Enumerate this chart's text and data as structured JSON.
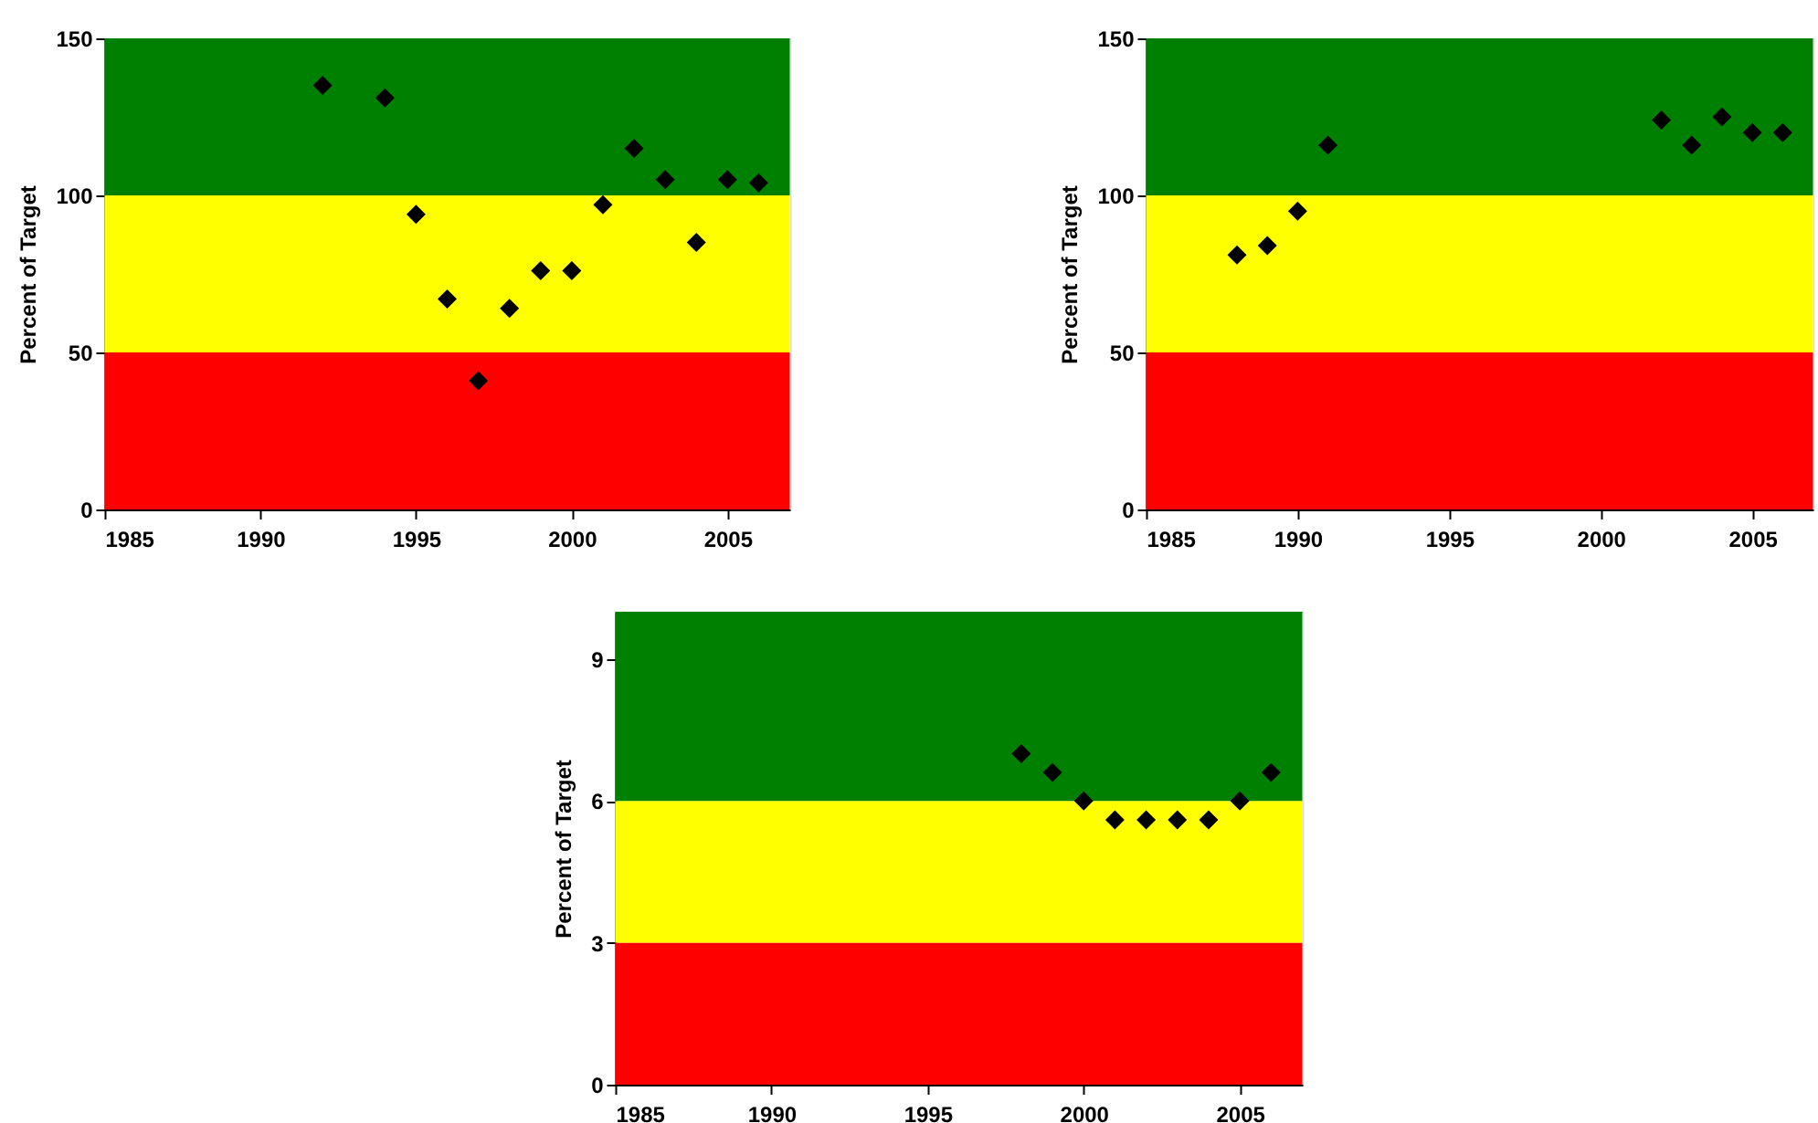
{
  "chart_data": [
    {
      "type": "scatter",
      "ylabel": "Percent of Target",
      "xlim": [
        1985,
        2007
      ],
      "xticks": [
        1985,
        1990,
        1995,
        2000,
        2005
      ],
      "ylim": [
        0,
        150
      ],
      "yticks": [
        0,
        50,
        100,
        150
      ],
      "marker": "diamond",
      "grid": false,
      "series": [
        {
          "color": "#000000",
          "x": [
            1992,
            1994,
            1995,
            1996,
            1997,
            1998,
            1999,
            2000,
            2001,
            2002,
            2003,
            2004,
            2005,
            2006
          ],
          "values": [
            135,
            131,
            94,
            67,
            41,
            64,
            76,
            76,
            97,
            115,
            105,
            85,
            105,
            104
          ]
        }
      ],
      "bands": [
        {
          "axis": "y",
          "from": 0,
          "to": 50,
          "color": "#ff0000"
        },
        {
          "axis": "y",
          "from": 50,
          "to": 100,
          "color": "#ffff00"
        },
        {
          "axis": "y",
          "from": 100,
          "to": 150,
          "color": "#008000"
        }
      ]
    },
    {
      "type": "scatter",
      "ylabel": "Percent of Target",
      "xlim": [
        1985,
        2007
      ],
      "xticks": [
        1985,
        1990,
        1995,
        2000,
        2005
      ],
      "ylim": [
        0,
        150
      ],
      "yticks": [
        0,
        50,
        100,
        150
      ],
      "marker": "diamond",
      "grid": false,
      "series": [
        {
          "color": "#000000",
          "x": [
            1988,
            1989,
            1990,
            1991,
            2002,
            2003,
            2004,
            2005,
            2006
          ],
          "values": [
            81,
            84,
            95,
            116,
            124,
            116,
            125,
            120,
            120
          ]
        }
      ],
      "bands": [
        {
          "axis": "y",
          "from": 0,
          "to": 50,
          "color": "#ff0000"
        },
        {
          "axis": "y",
          "from": 50,
          "to": 100,
          "color": "#ffff00"
        },
        {
          "axis": "y",
          "from": 100,
          "to": 150,
          "color": "#008000"
        }
      ]
    },
    {
      "type": "scatter",
      "ylabel": "Percent of Target",
      "xlim": [
        1985,
        2007
      ],
      "xticks": [
        1985,
        1990,
        1995,
        2000,
        2005
      ],
      "ylim": [
        0,
        10
      ],
      "yticks": [
        0,
        3,
        6,
        9
      ],
      "marker": "diamond",
      "grid": false,
      "series": [
        {
          "color": "#000000",
          "x": [
            1998,
            1999,
            2000,
            2001,
            2002,
            2003,
            2004,
            2005,
            2006
          ],
          "values": [
            7.0,
            6.6,
            6.0,
            5.6,
            5.6,
            5.6,
            5.6,
            6.0,
            6.6
          ]
        }
      ],
      "bands": [
        {
          "axis": "y",
          "from": 0,
          "to": 3,
          "color": "#ff0000"
        },
        {
          "axis": "y",
          "from": 3,
          "to": 6,
          "color": "#ffff00"
        },
        {
          "axis": "y",
          "from": 6,
          "to": 10,
          "color": "#008000"
        }
      ]
    }
  ]
}
